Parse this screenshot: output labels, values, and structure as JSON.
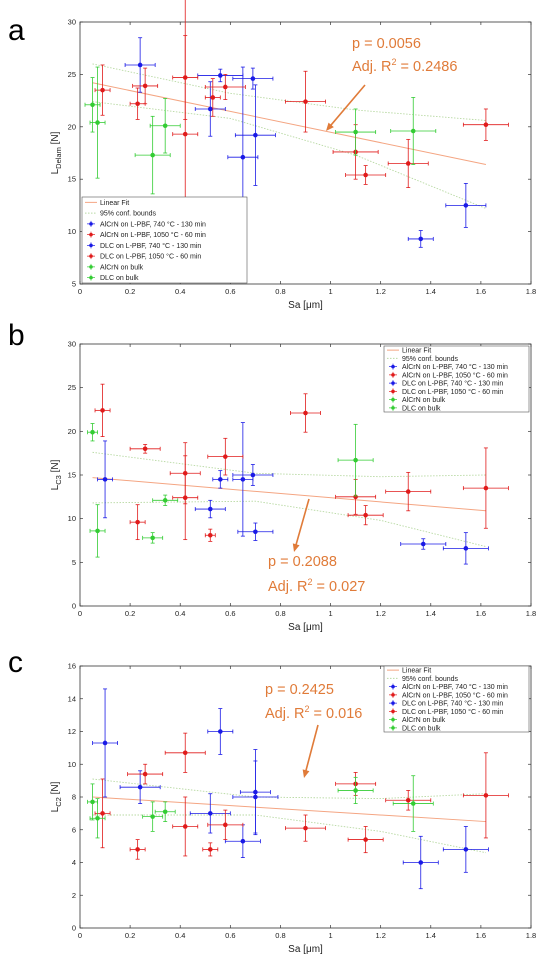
{
  "colors": {
    "blue": "#1a1ae6",
    "red": "#e01b1b",
    "green": "#33cc33",
    "fit": "#F4A582",
    "annotation": "#E07B39",
    "axis": "#333333"
  },
  "legend_entries": [
    {
      "label": "Linear Fit",
      "kind": "fit"
    },
    {
      "label": "95% conf. bounds",
      "kind": "bounds"
    },
    {
      "label": "AlCrN on L-PBF, 740 °C - 130 min",
      "color": "blue"
    },
    {
      "label": "AlCrN on L-PBF, 1050 °C - 60 min",
      "color": "red"
    },
    {
      "label": "DLC on L-PBF, 740 °C - 130 min",
      "color": "blue"
    },
    {
      "label": "DLC on L-PBF, 1050 °C - 60 min",
      "color": "red"
    },
    {
      "label": "AlCrN on bulk",
      "color": "green"
    },
    {
      "label": "DLC on bulk",
      "color": "green"
    }
  ],
  "chart_data": [
    {
      "panel": "a",
      "type": "scatter",
      "xlabel": "Sa [μm]",
      "ylabel_main": "L",
      "ylabel_sub": "Delam",
      "ylabel_unit": " [N]",
      "xlim": [
        0,
        1.8
      ],
      "ylim": [
        5,
        30
      ],
      "xticks": [
        0,
        0.2,
        0.4,
        0.6,
        0.8,
        1,
        1.2,
        1.4,
        1.6,
        1.8
      ],
      "xtick_labels": [
        "0",
        "0.2",
        "0.4",
        "0.6",
        "0.8",
        "1",
        "1.2",
        "1.4",
        "1.6",
        "1.8"
      ],
      "yticks": [
        5,
        10,
        15,
        20,
        25,
        30
      ],
      "ytick_labels": [
        "5",
        "10",
        "15",
        "20",
        "25",
        "30"
      ],
      "legend_position": "bottom-left",
      "annotation": {
        "p_text": "p = 0.0056",
        "r2_prefix": "Adj. R",
        "r2_sup": "2",
        "r2_value": " = 0.2486"
      },
      "fit": {
        "x": [
          0.05,
          1.62
        ],
        "y": [
          24.2,
          16.4
        ]
      },
      "bounds_upper": {
        "x": [
          0.05,
          0.6,
          1.1,
          1.62
        ],
        "y": [
          26.0,
          23.2,
          21.6,
          20.6
        ]
      },
      "bounds_lower": {
        "x": [
          0.05,
          0.6,
          1.1,
          1.62
        ],
        "y": [
          22.4,
          20.8,
          17.3,
          12.2
        ]
      },
      "points": [
        {
          "x": 0.24,
          "y": 25.9,
          "xerr": 0.06,
          "yerr": 2.6,
          "color": "blue"
        },
        {
          "x": 0.56,
          "y": 24.9,
          "xerr": 0.09,
          "yerr": 0.6,
          "color": "blue"
        },
        {
          "x": 0.69,
          "y": 24.6,
          "xerr": 0.08,
          "yerr": 1.0,
          "color": "blue"
        },
        {
          "x": 0.52,
          "y": 21.7,
          "xerr": 0.06,
          "yerr": 2.6,
          "color": "blue"
        },
        {
          "x": 0.7,
          "y": 19.2,
          "xerr": 0.08,
          "yerr": 4.8,
          "color": "blue"
        },
        {
          "x": 0.65,
          "y": 17.1,
          "xerr": 0.06,
          "yerr": 8.6,
          "color": "blue"
        },
        {
          "x": 1.54,
          "y": 12.5,
          "xerr": 0.08,
          "yerr": 2.1,
          "color": "blue"
        },
        {
          "x": 1.36,
          "y": 9.3,
          "xerr": 0.05,
          "yerr": 0.8,
          "color": "blue"
        },
        {
          "x": 0.09,
          "y": 23.5,
          "xerr": 0.03,
          "yerr": 2.4,
          "color": "red"
        },
        {
          "x": 0.26,
          "y": 23.9,
          "xerr": 0.05,
          "yerr": 1.7,
          "color": "red"
        },
        {
          "x": 0.23,
          "y": 22.2,
          "xerr": 0.03,
          "yerr": 1.5,
          "color": "red"
        },
        {
          "x": 0.42,
          "y": 24.7,
          "xerr": 0.05,
          "yerr": 4.0,
          "color": "red"
        },
        {
          "x": 0.53,
          "y": 22.8,
          "xerr": 0.03,
          "yerr": 1.8,
          "color": "red"
        },
        {
          "x": 0.58,
          "y": 23.8,
          "xerr": 0.08,
          "yerr": 1.2,
          "color": "red"
        },
        {
          "x": 0.42,
          "y": 19.3,
          "xerr": 0.05,
          "yerr": 13.9,
          "color": "red"
        },
        {
          "x": 0.9,
          "y": 22.4,
          "xerr": 0.08,
          "yerr": 2.9,
          "color": "red"
        },
        {
          "x": 1.1,
          "y": 17.6,
          "xerr": 0.09,
          "yerr": 2.6,
          "color": "red"
        },
        {
          "x": 1.14,
          "y": 15.4,
          "xerr": 0.08,
          "yerr": 0.9,
          "color": "red"
        },
        {
          "x": 1.31,
          "y": 16.5,
          "xerr": 0.08,
          "yerr": 2.3,
          "color": "red"
        },
        {
          "x": 1.62,
          "y": 20.2,
          "xerr": 0.09,
          "yerr": 1.5,
          "color": "red"
        },
        {
          "x": 0.05,
          "y": 22.1,
          "xerr": 0.03,
          "yerr": 2.6,
          "color": "green"
        },
        {
          "x": 0.07,
          "y": 20.4,
          "xerr": 0.03,
          "yerr": 5.3,
          "color": "green"
        },
        {
          "x": 0.34,
          "y": 20.1,
          "xerr": 0.06,
          "yerr": 2.6,
          "color": "green"
        },
        {
          "x": 0.29,
          "y": 17.3,
          "xerr": 0.07,
          "yerr": 3.7,
          "color": "green"
        },
        {
          "x": 1.1,
          "y": 19.5,
          "xerr": 0.08,
          "yerr": 2.2,
          "color": "green"
        },
        {
          "x": 1.33,
          "y": 19.6,
          "xerr": 0.09,
          "yerr": 3.2,
          "color": "green"
        }
      ]
    },
    {
      "panel": "b",
      "type": "scatter",
      "xlabel": "Sa [μm]",
      "ylabel_main": "L",
      "ylabel_sub": "C3",
      "ylabel_unit": " [N]",
      "xlim": [
        0,
        1.8
      ],
      "ylim": [
        0,
        30
      ],
      "xticks": [
        0,
        0.2,
        0.4,
        0.6,
        0.8,
        1,
        1.2,
        1.4,
        1.6,
        1.8
      ],
      "xtick_labels": [
        "0",
        "0.2",
        "0.4",
        "0.6",
        "0.8",
        "1",
        "1.2",
        "1.4",
        "1.6",
        "1.8"
      ],
      "yticks": [
        0,
        5,
        10,
        15,
        20,
        25,
        30
      ],
      "ytick_labels": [
        "0",
        "5",
        "10",
        "15",
        "20",
        "25",
        "30"
      ],
      "legend_position": "top-right",
      "annotation": {
        "p_text": "p = 0.2088",
        "r2_prefix": "Adj. R",
        "r2_sup": "2",
        "r2_value": " = 0.027"
      },
      "fit": {
        "x": [
          0.05,
          1.62
        ],
        "y": [
          14.7,
          10.9
        ]
      },
      "bounds_upper": {
        "x": [
          0.05,
          0.7,
          1.2,
          1.62
        ],
        "y": [
          17.6,
          15.2,
          14.8,
          15.0
        ]
      },
      "bounds_lower": {
        "x": [
          0.05,
          0.7,
          1.2,
          1.62
        ],
        "y": [
          11.8,
          12.0,
          9.8,
          6.8
        ]
      },
      "points": [
        {
          "x": 0.1,
          "y": 14.5,
          "xerr": 0.03,
          "yerr": 4.4,
          "color": "blue"
        },
        {
          "x": 0.56,
          "y": 14.5,
          "xerr": 0.03,
          "yerr": 1.0,
          "color": "blue"
        },
        {
          "x": 0.65,
          "y": 14.5,
          "xerr": 0.04,
          "yerr": 6.5,
          "color": "blue"
        },
        {
          "x": 0.69,
          "y": 15.0,
          "xerr": 0.08,
          "yerr": 1.2,
          "color": "blue"
        },
        {
          "x": 0.52,
          "y": 11.1,
          "xerr": 0.06,
          "yerr": 1.0,
          "color": "blue"
        },
        {
          "x": 0.7,
          "y": 8.5,
          "xerr": 0.07,
          "yerr": 1.0,
          "color": "blue"
        },
        {
          "x": 1.37,
          "y": 7.1,
          "xerr": 0.09,
          "yerr": 0.6,
          "color": "blue"
        },
        {
          "x": 1.54,
          "y": 6.6,
          "xerr": 0.09,
          "yerr": 1.8,
          "color": "blue"
        },
        {
          "x": 0.09,
          "y": 22.4,
          "xerr": 0.03,
          "yerr": 3.0,
          "color": "red"
        },
        {
          "x": 0.26,
          "y": 18.0,
          "xerr": 0.06,
          "yerr": 0.5,
          "color": "red"
        },
        {
          "x": 0.58,
          "y": 17.1,
          "xerr": 0.07,
          "yerr": 2.1,
          "color": "red"
        },
        {
          "x": 0.9,
          "y": 22.1,
          "xerr": 0.06,
          "yerr": 2.2,
          "color": "red"
        },
        {
          "x": 0.42,
          "y": 15.2,
          "xerr": 0.06,
          "yerr": 3.5,
          "color": "red"
        },
        {
          "x": 0.42,
          "y": 12.4,
          "xerr": 0.05,
          "yerr": 4.8,
          "color": "red"
        },
        {
          "x": 0.23,
          "y": 9.6,
          "xerr": 0.03,
          "yerr": 2.0,
          "color": "red"
        },
        {
          "x": 0.52,
          "y": 8.1,
          "xerr": 0.02,
          "yerr": 0.7,
          "color": "red"
        },
        {
          "x": 1.1,
          "y": 12.5,
          "xerr": 0.08,
          "yerr": 2.0,
          "color": "red"
        },
        {
          "x": 1.14,
          "y": 10.4,
          "xerr": 0.07,
          "yerr": 1.1,
          "color": "red"
        },
        {
          "x": 1.31,
          "y": 13.1,
          "xerr": 0.09,
          "yerr": 2.2,
          "color": "red"
        },
        {
          "x": 1.62,
          "y": 13.5,
          "xerr": 0.09,
          "yerr": 4.6,
          "color": "red"
        },
        {
          "x": 0.05,
          "y": 19.9,
          "xerr": 0.02,
          "yerr": 1.0,
          "color": "green"
        },
        {
          "x": 0.07,
          "y": 8.6,
          "xerr": 0.03,
          "yerr": 3.0,
          "color": "green"
        },
        {
          "x": 0.34,
          "y": 12.1,
          "xerr": 0.05,
          "yerr": 0.6,
          "color": "green"
        },
        {
          "x": 0.29,
          "y": 7.8,
          "xerr": 0.04,
          "yerr": 0.6,
          "color": "green"
        },
        {
          "x": 1.1,
          "y": 16.7,
          "xerr": 0.07,
          "yerr": 4.1,
          "color": "green"
        }
      ]
    },
    {
      "panel": "c",
      "type": "scatter",
      "xlabel": "Sa [μm]",
      "ylabel_main": "L",
      "ylabel_sub": "C2",
      "ylabel_unit": " [N]",
      "xlim": [
        0,
        1.8
      ],
      "ylim": [
        0,
        16
      ],
      "xticks": [
        0,
        0.2,
        0.4,
        0.6,
        0.8,
        1,
        1.2,
        1.4,
        1.6,
        1.8
      ],
      "xtick_labels": [
        "0",
        "0.2",
        "0.4",
        "0.6",
        "0.8",
        "1",
        "1.2",
        "1.4",
        "1.6",
        "1.8"
      ],
      "yticks": [
        0,
        2,
        4,
        6,
        8,
        10,
        12,
        14,
        16
      ],
      "ytick_labels": [
        "0",
        "2",
        "4",
        "6",
        "8",
        "10",
        "12",
        "14",
        "16"
      ],
      "legend_position": "top-right",
      "annotation": {
        "p_text": "p = 0.2425",
        "r2_prefix": "Adj. R",
        "r2_sup": "2",
        "r2_value": " = 0.016"
      },
      "fit": {
        "x": [
          0.05,
          1.62
        ],
        "y": [
          8.0,
          6.5
        ]
      },
      "bounds_upper": {
        "x": [
          0.05,
          0.7,
          1.2,
          1.62
        ],
        "y": [
          9.1,
          8.0,
          7.9,
          8.2
        ]
      },
      "bounds_lower": {
        "x": [
          0.05,
          0.7,
          1.2,
          1.62
        ],
        "y": [
          6.9,
          6.9,
          5.9,
          4.6
        ]
      },
      "points": [
        {
          "x": 0.1,
          "y": 11.3,
          "xerr": 0.05,
          "yerr": 3.3,
          "color": "blue"
        },
        {
          "x": 0.24,
          "y": 8.6,
          "xerr": 0.08,
          "yerr": 1.0,
          "color": "blue"
        },
        {
          "x": 0.56,
          "y": 12.0,
          "xerr": 0.05,
          "yerr": 1.4,
          "color": "blue"
        },
        {
          "x": 0.52,
          "y": 7.0,
          "xerr": 0.08,
          "yerr": 1.2,
          "color": "blue"
        },
        {
          "x": 0.7,
          "y": 8.3,
          "xerr": 0.06,
          "yerr": 2.6,
          "color": "blue"
        },
        {
          "x": 0.7,
          "y": 8.0,
          "xerr": 0.09,
          "yerr": 2.2,
          "color": "blue"
        },
        {
          "x": 0.65,
          "y": 5.3,
          "xerr": 0.07,
          "yerr": 1.0,
          "color": "blue"
        },
        {
          "x": 1.36,
          "y": 4.0,
          "xerr": 0.07,
          "yerr": 1.6,
          "color": "blue"
        },
        {
          "x": 1.54,
          "y": 4.8,
          "xerr": 0.09,
          "yerr": 1.4,
          "color": "blue"
        },
        {
          "x": 0.09,
          "y": 7.0,
          "xerr": 0.03,
          "yerr": 2.1,
          "color": "red"
        },
        {
          "x": 0.26,
          "y": 9.4,
          "xerr": 0.07,
          "yerr": 0.6,
          "color": "red"
        },
        {
          "x": 0.42,
          "y": 10.7,
          "xerr": 0.08,
          "yerr": 1.2,
          "color": "red"
        },
        {
          "x": 0.23,
          "y": 4.8,
          "xerr": 0.03,
          "yerr": 0.6,
          "color": "red"
        },
        {
          "x": 0.42,
          "y": 6.2,
          "xerr": 0.05,
          "yerr": 1.8,
          "color": "red"
        },
        {
          "x": 0.52,
          "y": 4.8,
          "xerr": 0.03,
          "yerr": 0.4,
          "color": "red"
        },
        {
          "x": 0.58,
          "y": 6.3,
          "xerr": 0.07,
          "yerr": 0.9,
          "color": "red"
        },
        {
          "x": 0.9,
          "y": 6.1,
          "xerr": 0.08,
          "yerr": 0.8,
          "color": "red"
        },
        {
          "x": 1.1,
          "y": 8.8,
          "xerr": 0.08,
          "yerr": 0.7,
          "color": "red"
        },
        {
          "x": 1.14,
          "y": 5.4,
          "xerr": 0.07,
          "yerr": 0.8,
          "color": "red"
        },
        {
          "x": 1.31,
          "y": 7.8,
          "xerr": 0.09,
          "yerr": 0.6,
          "color": "red"
        },
        {
          "x": 1.62,
          "y": 8.1,
          "xerr": 0.09,
          "yerr": 2.6,
          "color": "red"
        },
        {
          "x": 0.05,
          "y": 7.7,
          "xerr": 0.02,
          "yerr": 1.1,
          "color": "green"
        },
        {
          "x": 0.07,
          "y": 6.7,
          "xerr": 0.03,
          "yerr": 1.2,
          "color": "green"
        },
        {
          "x": 0.29,
          "y": 6.8,
          "xerr": 0.04,
          "yerr": 0.9,
          "color": "green"
        },
        {
          "x": 0.34,
          "y": 7.1,
          "xerr": 0.04,
          "yerr": 0.6,
          "color": "green"
        },
        {
          "x": 1.1,
          "y": 8.4,
          "xerr": 0.07,
          "yerr": 0.8,
          "color": "green"
        },
        {
          "x": 1.33,
          "y": 7.6,
          "xerr": 0.08,
          "yerr": 1.7,
          "color": "green"
        }
      ]
    }
  ]
}
